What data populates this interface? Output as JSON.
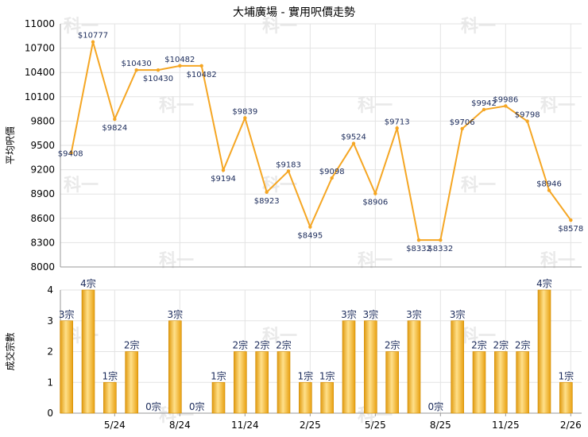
{
  "chart_data": [
    {
      "type": "line",
      "title": "大埔廣場 - 實用呎價走勢",
      "ylabel": "平均呎價",
      "ylim": [
        8000,
        11000
      ],
      "yticks": [
        8000,
        8300,
        8600,
        8900,
        9200,
        9500,
        9800,
        10100,
        10400,
        10700,
        11000
      ],
      "x_ticks": [
        "5/24",
        "8/24",
        "11/24",
        "2/25",
        "5/25",
        "8/25",
        "11/25",
        "2/26"
      ],
      "color": "#f5a623",
      "points": [
        {
          "i": 0,
          "value": 9408,
          "label": "$9408"
        },
        {
          "i": 1,
          "value": 10777,
          "label": "$10777"
        },
        {
          "i": 2,
          "value": 9824,
          "label": "$9824"
        },
        {
          "i": 3,
          "value": 10430,
          "label": "$10430"
        },
        {
          "i": 4,
          "value": 10430,
          "label": "$10430"
        },
        {
          "i": 5,
          "value": 10482,
          "label": "$10482"
        },
        {
          "i": 6,
          "value": 10482,
          "label": "$10482"
        },
        {
          "i": 7,
          "value": 9194,
          "label": "$9194"
        },
        {
          "i": 8,
          "value": 9839,
          "label": "$9839"
        },
        {
          "i": 9,
          "value": 8923,
          "label": "$8923"
        },
        {
          "i": 10,
          "value": 9183,
          "label": "$9183"
        },
        {
          "i": 11,
          "value": 8495,
          "label": "$8495"
        },
        {
          "i": 12,
          "value": 9098,
          "label": "$9098"
        },
        {
          "i": 13,
          "value": 9524,
          "label": "$9524"
        },
        {
          "i": 14,
          "value": 8906,
          "label": "$8906"
        },
        {
          "i": 15,
          "value": 9713,
          "label": "$9713"
        },
        {
          "i": 16,
          "value": 8332,
          "label": "$8332"
        },
        {
          "i": 17,
          "value": 8332,
          "label": "$8332"
        },
        {
          "i": 18,
          "value": 9706,
          "label": "$9706"
        },
        {
          "i": 19,
          "value": 9942,
          "label": "$9942"
        },
        {
          "i": 20,
          "value": 9986,
          "label": "$9986"
        },
        {
          "i": 21,
          "value": 9798,
          "label": "$9798"
        },
        {
          "i": 22,
          "value": 8946,
          "label": "$8946"
        },
        {
          "i": 23,
          "value": 8578,
          "label": "$8578"
        }
      ]
    },
    {
      "type": "bar",
      "ylabel": "成交宗數",
      "ylim": [
        0,
        4
      ],
      "yticks": [
        0,
        1,
        2,
        3,
        4
      ],
      "x_ticks": [
        "5/24",
        "8/24",
        "11/24",
        "2/25",
        "5/25",
        "8/25",
        "11/25",
        "2/26"
      ],
      "color": "#f5a623",
      "values": [
        3,
        4,
        1,
        2,
        0,
        3,
        0,
        1,
        2,
        2,
        2,
        1,
        1,
        3,
        3,
        2,
        3,
        0,
        3,
        2,
        2,
        2,
        4,
        1
      ],
      "labels": [
        "3宗",
        "4宗",
        "1宗",
        "2宗",
        "0宗",
        "3宗",
        "0宗",
        "1宗",
        "2宗",
        "2宗",
        "2宗",
        "1宗",
        "1宗",
        "3宗",
        "3宗",
        "2宗",
        "3宗",
        "0宗",
        "3宗",
        "2宗",
        "2宗",
        "2宗",
        "4宗",
        "1宗"
      ]
    }
  ]
}
